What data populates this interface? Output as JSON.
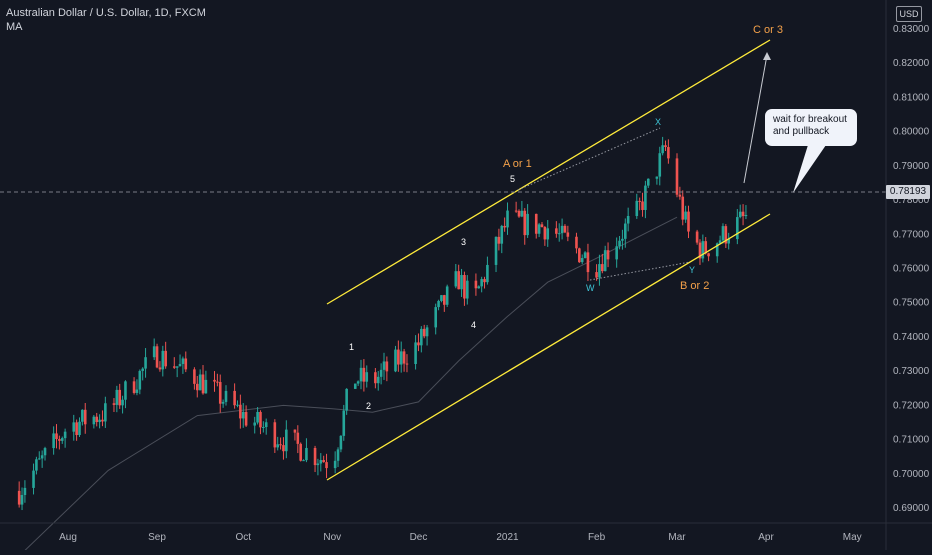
{
  "header": {
    "symbol_title": "Australian Dollar / U.S. Dollar, 1D, FXCM",
    "indicator": "MA"
  },
  "price_axis": {
    "currency": "USD",
    "ticks": [
      "0.83000",
      "0.82000",
      "0.81000",
      "0.80000",
      "0.79000",
      "0.78000",
      "0.77000",
      "0.76000",
      "0.75000",
      "0.74000",
      "0.73000",
      "0.72000",
      "0.71000",
      "0.70000",
      "0.69000"
    ],
    "current_price": "0.78193"
  },
  "time_axis": {
    "ticks": [
      "Aug",
      "Sep",
      "Oct",
      "Nov",
      "Dec",
      "2021",
      "Feb",
      "Mar",
      "Apr",
      "May"
    ]
  },
  "annotations": {
    "wave_labels": [
      "1",
      "2",
      "3",
      "4",
      "5"
    ],
    "a_or_1": "A or 1",
    "b_or_2": "B or 2",
    "c_or_3": "C or 3",
    "x": "X",
    "w": "W",
    "y": "Y",
    "callout_line1": "wait for breakout",
    "callout_line2": "and pullback"
  },
  "colors": {
    "background": "#131722",
    "up_candle": "#26a69a",
    "down_candle": "#ef5350",
    "channel": "#ffeb3b",
    "wave_orange": "#f4a14a",
    "wave_cyan": "#3ec5d6"
  },
  "chart_data": {
    "type": "candlestick",
    "title": "Australian Dollar / U.S. Dollar, 1D, FXCM",
    "ylim": [
      0.686,
      0.835
    ],
    "x_ticks": [
      "Aug",
      "Sep",
      "Oct",
      "Nov",
      "Dec",
      "2021",
      "Feb",
      "Mar",
      "Apr",
      "May"
    ],
    "y_ticks": [
      0.83,
      0.82,
      0.81,
      0.8,
      0.79,
      0.78,
      0.77,
      0.76,
      0.75,
      0.74,
      0.73,
      0.72,
      0.71,
      0.7,
      0.69
    ],
    "current_price": 0.78193,
    "close_path": [
      {
        "date": "2020-07-15",
        "close": 0.695
      },
      {
        "date": "2020-08-01",
        "close": 0.714
      },
      {
        "date": "2020-08-15",
        "close": 0.718
      },
      {
        "date": "2020-09-01",
        "close": 0.735
      },
      {
        "date": "2020-09-15",
        "close": 0.728
      },
      {
        "date": "2020-10-01",
        "close": 0.717
      },
      {
        "date": "2020-10-15",
        "close": 0.71
      },
      {
        "date": "2020-11-01",
        "close": 0.703
      },
      {
        "date": "2020-11-08",
        "close": 0.728
      },
      {
        "date": "2020-11-15",
        "close": 0.727
      },
      {
        "date": "2020-12-01",
        "close": 0.738
      },
      {
        "date": "2020-12-15",
        "close": 0.757
      },
      {
        "date": "2020-12-20",
        "close": 0.75
      },
      {
        "date": "2021-01-01",
        "close": 0.774
      },
      {
        "date": "2021-01-15",
        "close": 0.772
      },
      {
        "date": "2021-02-01",
        "close": 0.761
      },
      {
        "date": "2021-02-15",
        "close": 0.776
      },
      {
        "date": "2021-02-25",
        "close": 0.795
      },
      {
        "date": "2021-03-05",
        "close": 0.77
      },
      {
        "date": "2021-03-10",
        "close": 0.765
      },
      {
        "date": "2021-03-25",
        "close": 0.775
      }
    ],
    "moving_average": [
      {
        "date": "2020-07-15",
        "value": 0.676
      },
      {
        "date": "2020-08-15",
        "value": 0.701
      },
      {
        "date": "2020-09-15",
        "value": 0.717
      },
      {
        "date": "2020-10-15",
        "value": 0.72
      },
      {
        "date": "2020-11-01",
        "value": 0.719
      },
      {
        "date": "2020-11-15",
        "value": 0.718
      },
      {
        "date": "2020-12-01",
        "value": 0.721
      },
      {
        "date": "2020-12-15",
        "value": 0.733
      },
      {
        "date": "2021-01-01",
        "value": 0.746
      },
      {
        "date": "2021-01-15",
        "value": 0.756
      },
      {
        "date": "2021-02-01",
        "value": 0.763
      },
      {
        "date": "2021-03-01",
        "value": 0.775
      }
    ],
    "channel_upper": [
      {
        "date": "2020-11-01",
        "value": 0.751
      },
      {
        "date": "2021-04-01",
        "value": 0.826
      }
    ],
    "channel_lower": [
      {
        "date": "2020-11-01",
        "value": 0.699
      },
      {
        "date": "2021-03-28",
        "value": 0.774
      }
    ]
  }
}
